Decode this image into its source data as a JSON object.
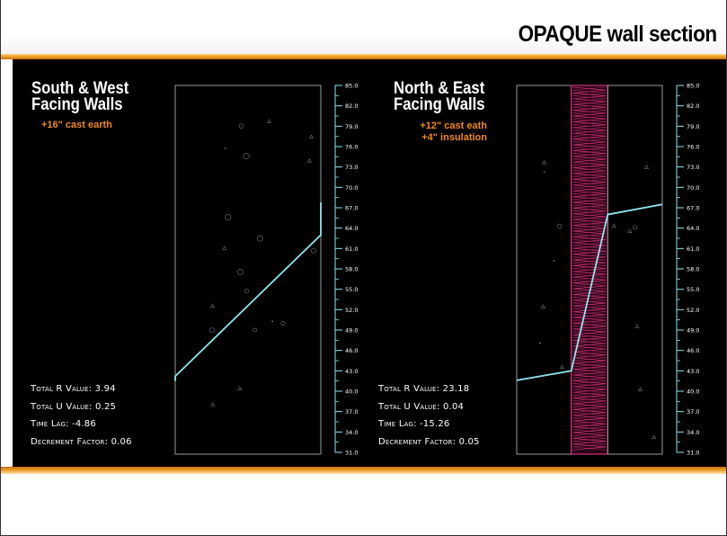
{
  "slide": {
    "title": "OPAQUE wall section"
  },
  "colors": {
    "accent": "#f08a1c",
    "temperature_line": "#8ee8f0",
    "panel": "#000000",
    "insulation": "#d0327a"
  },
  "chart_data": [
    {
      "type": "line",
      "title_lines": [
        "South & West",
        "Facing Walls"
      ],
      "subtitle_lines": [
        "+16\" cast earth"
      ],
      "y_ticks": [
        "85.0",
        "82.0",
        "79.0",
        "76.0",
        "73.0",
        "70.0",
        "67.0",
        "64.0",
        "61.0",
        "58.0",
        "55.0",
        "52.0",
        "49.0",
        "46.0",
        "43.0",
        "40.0",
        "37.0",
        "34.0",
        "31.0"
      ],
      "ylim": [
        31,
        85
      ],
      "xlim": [
        0,
        16
      ],
      "layers": [
        {
          "name": "cast earth",
          "start": 0,
          "end": 16
        }
      ],
      "series": [
        {
          "x": [
            0,
            0,
            16,
            16
          ],
          "y": [
            41.5,
            42.2,
            63.0,
            67.8
          ]
        }
      ],
      "stats": [
        {
          "label": "Total R Value:",
          "value": "3.94"
        },
        {
          "label": "Total U Value:",
          "value": "0.25"
        },
        {
          "label": "Time Lag:",
          "value": "-4.86"
        },
        {
          "label": "Decrement Factor:",
          "value": "0.06"
        }
      ]
    },
    {
      "type": "line",
      "title_lines": [
        "North & East",
        "Facing Walls"
      ],
      "subtitle_lines": [
        "+12\" cast eath",
        "+4\" insulation"
      ],
      "y_ticks": [
        "85.0",
        "82.0",
        "79.0",
        "76.0",
        "73.0",
        "70.0",
        "67.0",
        "64.0",
        "61.0",
        "58.0",
        "55.0",
        "52.0",
        "49.0",
        "46.0",
        "43.0",
        "40.0",
        "37.0",
        "34.0",
        "31.0"
      ],
      "ylim": [
        31,
        85
      ],
      "xlim": [
        0,
        20
      ],
      "layers": [
        {
          "name": "cast earth",
          "start": 0,
          "end": 6
        },
        {
          "name": "insulation",
          "start": 6,
          "end": 10
        },
        {
          "name": "cast earth",
          "start": 10,
          "end": 16
        }
      ],
      "series": [
        {
          "x": [
            0,
            6,
            10,
            16
          ],
          "y": [
            41.6,
            43.0,
            66.0,
            67.5
          ]
        }
      ],
      "stats": [
        {
          "label": "Total R Value:",
          "value": "23.18"
        },
        {
          "label": "Total U Value:",
          "value": "0.04"
        },
        {
          "label": "Time Lag:",
          "value": "-15.26"
        },
        {
          "label": "Decrement Factor:",
          "value": "0.05"
        }
      ]
    }
  ]
}
